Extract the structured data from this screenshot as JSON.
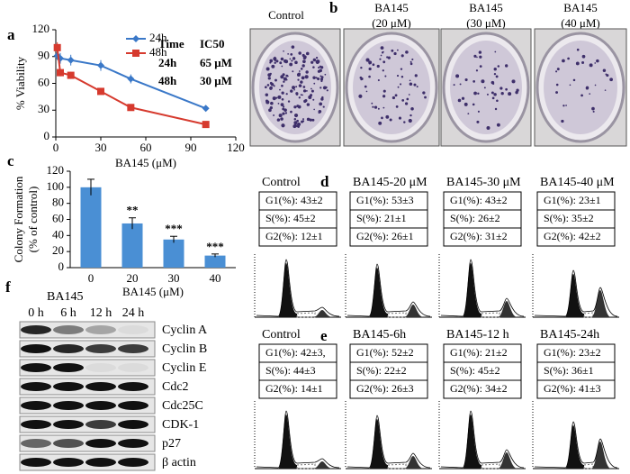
{
  "chart_data": [
    {
      "type": "line",
      "panel": "a",
      "x": [
        1,
        3,
        10,
        30,
        50,
        100
      ],
      "series": [
        {
          "name": "24h",
          "color": "#3a78c8",
          "marker": "diamond",
          "values": [
            91,
            88,
            86,
            80,
            65,
            32
          ],
          "errors": [
            5,
            6,
            6,
            6,
            5,
            2
          ]
        },
        {
          "name": "48h",
          "color": "#d63a2e",
          "marker": "square",
          "values": [
            100,
            72,
            69,
            51,
            33,
            14
          ],
          "errors": [
            6,
            4,
            4,
            2,
            2,
            2
          ]
        }
      ],
      "xlim": [
        0,
        120
      ],
      "ylim": [
        0,
        120
      ],
      "xticks": [
        0,
        30,
        60,
        90,
        120
      ],
      "yticks": [
        0,
        30,
        60,
        90,
        120
      ],
      "x_label": "BA145 (μM)",
      "y_label": "% Viability",
      "legend": "upper right",
      "table": {
        "header": [
          "Time",
          "IC50"
        ],
        "rows": [
          [
            "24h",
            "65 μM"
          ],
          [
            "48h",
            "30 μM"
          ]
        ]
      }
    },
    {
      "type": "bar",
      "panel": "c",
      "categories": [
        "0",
        "20",
        "30",
        "40"
      ],
      "values": [
        100,
        55,
        35,
        15
      ],
      "errors": [
        10,
        7,
        4,
        2
      ],
      "color": "#4a8fd4",
      "significance": [
        {
          "index": 1,
          "label": "**"
        },
        {
          "index": 2,
          "label": "***"
        },
        {
          "index": 3,
          "label": "***"
        }
      ],
      "ylim": [
        0,
        120
      ],
      "yticks": [
        0,
        20,
        40,
        60,
        80,
        100,
        120
      ],
      "x_label": "BA145 (μM)",
      "y_label": [
        "Colony Formation",
        "(% of control)"
      ]
    }
  ],
  "panel_b": {
    "label": "b",
    "titles": [
      [
        "Control"
      ],
      [
        "BA145",
        "(20 μM)"
      ],
      [
        "BA145",
        "(30 μM)"
      ],
      [
        "BA145",
        "(40 μM)"
      ]
    ]
  },
  "panel_d": {
    "label": "d",
    "columns": [
      {
        "title": "Control",
        "stats": [
          "G1(%): 43±2",
          "S(%): 45±2",
          "G2(%): 12±1"
        ]
      },
      {
        "title": "BA145-20 μM",
        "stats": [
          "G1(%): 53±3",
          "S(%): 21±1",
          "G2(%): 26±1"
        ]
      },
      {
        "title": "BA145-30 μM",
        "stats": [
          "G1(%): 43±2",
          "S(%): 26±2",
          "G2(%): 31±2"
        ]
      },
      {
        "title": "BA145-40 μM",
        "stats": [
          "G1(%): 23±1",
          "S(%): 35±2",
          "G2(%): 42±2"
        ]
      }
    ]
  },
  "panel_e": {
    "label": "e",
    "columns": [
      {
        "title": "Control",
        "stats": [
          "G1(%): 42±3,",
          "S(%): 44±3",
          "G2(%): 14±1"
        ]
      },
      {
        "title": "BA145-6h",
        "stats": [
          "G1(%): 52±2",
          "S(%): 22±2",
          "G2(%): 26±3"
        ]
      },
      {
        "title": "BA145-12 h",
        "stats": [
          "G1(%): 21±2",
          "S(%): 45±2",
          "G2(%): 34±2"
        ]
      },
      {
        "title": "BA145-24h",
        "stats": [
          "G1(%): 23±2",
          "S(%): 36±1",
          "G2(%): 41±3"
        ]
      }
    ]
  },
  "panel_f": {
    "label": "f",
    "treatment": "BA145",
    "times": [
      "0 h",
      "6 h",
      "12 h",
      "24 h"
    ],
    "proteins": [
      "Cyclin A",
      "Cyclin B",
      "Cyclin E",
      "Cdc2",
      "Cdc25C",
      "CDK-1",
      "p27",
      "β actin"
    ]
  }
}
